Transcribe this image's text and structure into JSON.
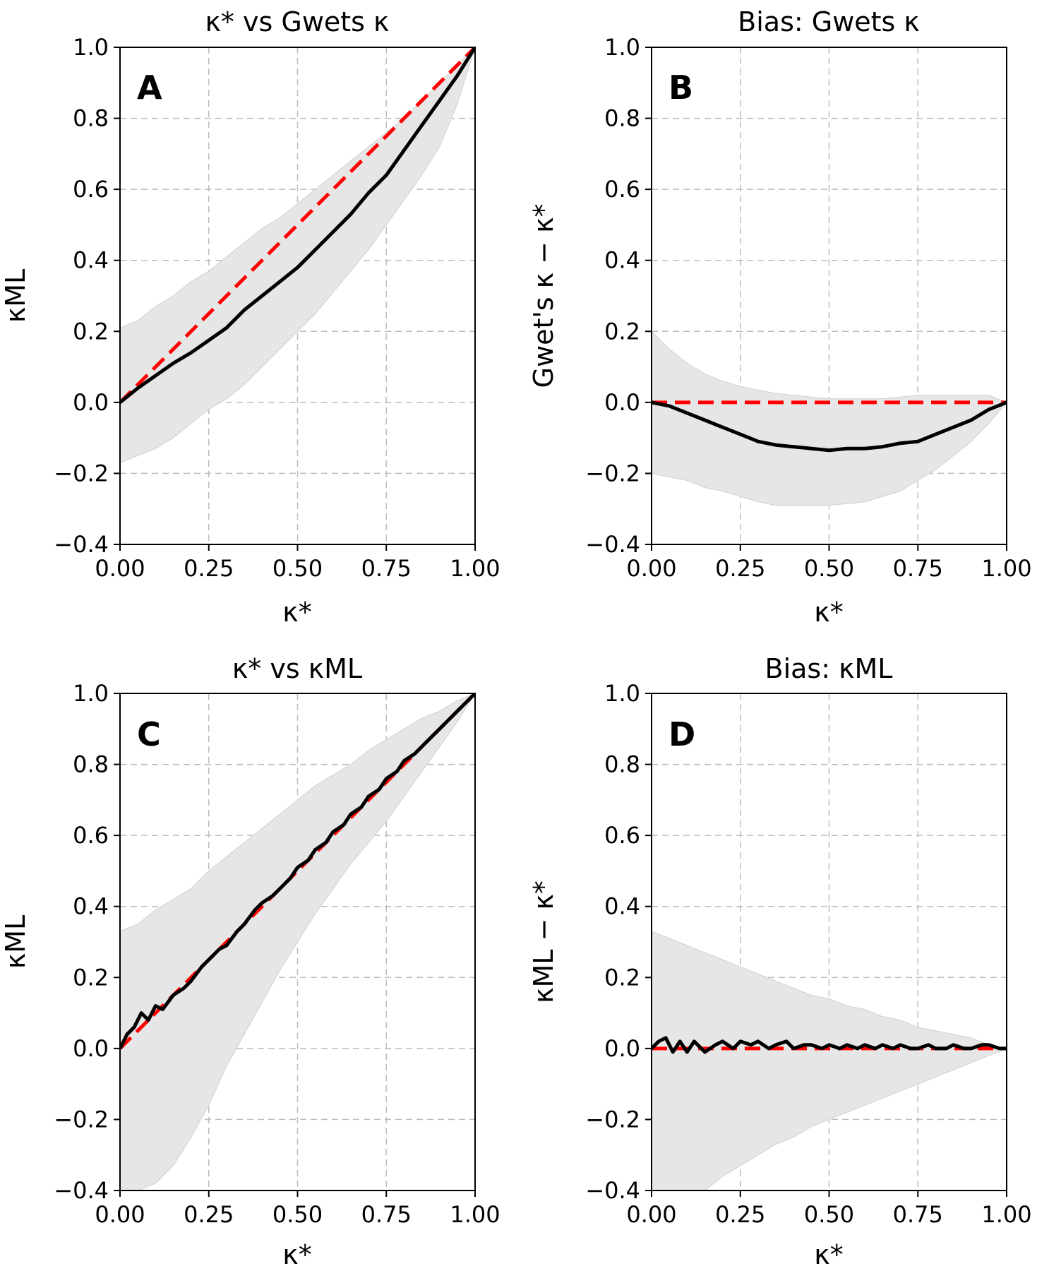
{
  "chart_data": [
    {
      "type": "line",
      "panel_label": "A",
      "title": "κ* vs Gwets κ",
      "xlabel": "κ*",
      "ylabel": "κML",
      "xlim": [
        0,
        1
      ],
      "ylim": [
        -0.4,
        1.0
      ],
      "xticks": [
        "0.00",
        "0.25",
        "0.50",
        "0.75",
        "1.00"
      ],
      "yticks": [
        "−0.4",
        "−0.2",
        "0.0",
        "0.2",
        "0.4",
        "0.6",
        "0.8",
        "1.0"
      ],
      "grid": true,
      "series": [
        {
          "name": "mean",
          "color": "#000000",
          "x": [
            0,
            0.05,
            0.1,
            0.15,
            0.2,
            0.25,
            0.3,
            0.35,
            0.4,
            0.45,
            0.5,
            0.55,
            0.6,
            0.65,
            0.7,
            0.75,
            0.8,
            0.85,
            0.9,
            0.95,
            1.0
          ],
          "y": [
            0.0,
            0.04,
            0.075,
            0.11,
            0.14,
            0.175,
            0.21,
            0.26,
            0.3,
            0.34,
            0.38,
            0.43,
            0.48,
            0.53,
            0.59,
            0.64,
            0.71,
            0.78,
            0.85,
            0.92,
            1.0
          ]
        },
        {
          "name": "identity",
          "color": "#ff0000",
          "style": "dashed",
          "x": [
            0,
            1
          ],
          "y": [
            0,
            1
          ]
        }
      ],
      "band": {
        "color": "#e6e6e6",
        "x": [
          0,
          0.05,
          0.1,
          0.15,
          0.2,
          0.25,
          0.3,
          0.35,
          0.4,
          0.45,
          0.5,
          0.55,
          0.6,
          0.65,
          0.7,
          0.75,
          0.8,
          0.85,
          0.9,
          0.95,
          1.0
        ],
        "upper": [
          0.21,
          0.23,
          0.27,
          0.3,
          0.34,
          0.37,
          0.41,
          0.45,
          0.49,
          0.52,
          0.56,
          0.6,
          0.64,
          0.68,
          0.72,
          0.76,
          0.8,
          0.85,
          0.9,
          0.95,
          1.0
        ],
        "lower": [
          -0.17,
          -0.15,
          -0.13,
          -0.1,
          -0.06,
          -0.02,
          0.01,
          0.05,
          0.1,
          0.15,
          0.2,
          0.25,
          0.31,
          0.37,
          0.43,
          0.5,
          0.57,
          0.64,
          0.72,
          0.84,
          1.0
        ]
      }
    },
    {
      "type": "line",
      "panel_label": "B",
      "title": "Bias: Gwets κ",
      "xlabel": "κ*",
      "ylabel": "Gwet's κ − κ*",
      "xlim": [
        0,
        1
      ],
      "ylim": [
        -0.4,
        1.0
      ],
      "xticks": [
        "0.00",
        "0.25",
        "0.50",
        "0.75",
        "1.00"
      ],
      "yticks": [
        "−0.4",
        "−0.2",
        "0.0",
        "0.2",
        "0.4",
        "0.6",
        "0.8",
        "1.0"
      ],
      "grid": true,
      "series": [
        {
          "name": "bias",
          "color": "#000000",
          "x": [
            0,
            0.05,
            0.1,
            0.15,
            0.2,
            0.25,
            0.3,
            0.35,
            0.4,
            0.45,
            0.5,
            0.55,
            0.6,
            0.65,
            0.7,
            0.75,
            0.8,
            0.85,
            0.9,
            0.95,
            1.0
          ],
          "y": [
            0.0,
            -0.01,
            -0.03,
            -0.05,
            -0.07,
            -0.09,
            -0.11,
            -0.12,
            -0.125,
            -0.13,
            -0.135,
            -0.13,
            -0.13,
            -0.125,
            -0.115,
            -0.11,
            -0.09,
            -0.07,
            -0.05,
            -0.02,
            0.0
          ]
        },
        {
          "name": "zero",
          "color": "#ff0000",
          "style": "dashed",
          "x": [
            0,
            1
          ],
          "y": [
            0,
            0
          ]
        }
      ],
      "band": {
        "color": "#e6e6e6",
        "x": [
          0,
          0.05,
          0.1,
          0.15,
          0.2,
          0.25,
          0.3,
          0.35,
          0.4,
          0.45,
          0.5,
          0.55,
          0.6,
          0.65,
          0.7,
          0.75,
          0.8,
          0.85,
          0.9,
          0.95,
          1.0
        ],
        "upper": [
          0.2,
          0.15,
          0.11,
          0.08,
          0.06,
          0.045,
          0.035,
          0.025,
          0.02,
          0.015,
          0.01,
          0.01,
          0.01,
          0.01,
          0.015,
          0.02,
          0.02,
          0.02,
          0.02,
          0.02,
          0.0
        ],
        "lower": [
          -0.2,
          -0.21,
          -0.22,
          -0.24,
          -0.25,
          -0.265,
          -0.28,
          -0.29,
          -0.29,
          -0.29,
          -0.29,
          -0.285,
          -0.28,
          -0.265,
          -0.25,
          -0.22,
          -0.19,
          -0.15,
          -0.11,
          -0.06,
          0.0
        ]
      }
    },
    {
      "type": "line",
      "panel_label": "C",
      "title": "κ* vs κML",
      "xlabel": "κ*",
      "ylabel": "κML",
      "xlim": [
        0,
        1
      ],
      "ylim": [
        -0.4,
        1.0
      ],
      "xticks": [
        "0.00",
        "0.25",
        "0.50",
        "0.75",
        "1.00"
      ],
      "yticks": [
        "−0.4",
        "−0.2",
        "0.0",
        "0.2",
        "0.4",
        "0.6",
        "0.8",
        "1.0"
      ],
      "grid": true,
      "series": [
        {
          "name": "mean",
          "color": "#000000",
          "x": [
            0,
            0.02,
            0.04,
            0.06,
            0.08,
            0.1,
            0.12,
            0.15,
            0.18,
            0.2,
            0.23,
            0.25,
            0.28,
            0.3,
            0.33,
            0.35,
            0.38,
            0.4,
            0.43,
            0.45,
            0.48,
            0.5,
            0.53,
            0.55,
            0.58,
            0.6,
            0.63,
            0.65,
            0.68,
            0.7,
            0.73,
            0.75,
            0.78,
            0.8,
            0.83,
            0.85,
            0.88,
            0.9,
            0.93,
            0.95,
            0.98,
            1.0
          ],
          "y": [
            0.0,
            0.04,
            0.06,
            0.1,
            0.08,
            0.12,
            0.11,
            0.15,
            0.17,
            0.19,
            0.23,
            0.25,
            0.28,
            0.29,
            0.33,
            0.35,
            0.39,
            0.41,
            0.43,
            0.45,
            0.48,
            0.51,
            0.53,
            0.56,
            0.58,
            0.61,
            0.63,
            0.66,
            0.68,
            0.71,
            0.73,
            0.76,
            0.78,
            0.81,
            0.83,
            0.85,
            0.88,
            0.9,
            0.93,
            0.95,
            0.98,
            1.0
          ]
        },
        {
          "name": "identity",
          "color": "#ff0000",
          "style": "dashed",
          "x": [
            0,
            1
          ],
          "y": [
            0,
            1
          ]
        }
      ],
      "band": {
        "color": "#e6e6e6",
        "x": [
          0,
          0.05,
          0.1,
          0.15,
          0.2,
          0.25,
          0.3,
          0.35,
          0.4,
          0.45,
          0.5,
          0.55,
          0.6,
          0.65,
          0.7,
          0.75,
          0.8,
          0.85,
          0.9,
          0.95,
          1.0
        ],
        "upper": [
          0.33,
          0.35,
          0.39,
          0.42,
          0.45,
          0.5,
          0.54,
          0.58,
          0.62,
          0.66,
          0.7,
          0.74,
          0.77,
          0.8,
          0.84,
          0.87,
          0.9,
          0.93,
          0.95,
          0.98,
          1.0
        ],
        "lower": [
          -0.4,
          -0.4,
          -0.38,
          -0.33,
          -0.25,
          -0.16,
          -0.05,
          0.04,
          0.13,
          0.22,
          0.3,
          0.38,
          0.45,
          0.52,
          0.58,
          0.64,
          0.71,
          0.78,
          0.85,
          0.92,
          1.0
        ]
      }
    },
    {
      "type": "line",
      "panel_label": "D",
      "title": "Bias: κML",
      "xlabel": "κ*",
      "ylabel": "κML − κ*",
      "xlim": [
        0,
        1
      ],
      "ylim": [
        -0.4,
        1.0
      ],
      "xticks": [
        "0.00",
        "0.25",
        "0.50",
        "0.75",
        "1.00"
      ],
      "yticks": [
        "−0.4",
        "−0.2",
        "0.0",
        "0.2",
        "0.4",
        "0.6",
        "0.8",
        "1.0"
      ],
      "grid": true,
      "series": [
        {
          "name": "bias",
          "color": "#000000",
          "x": [
            0,
            0.02,
            0.04,
            0.06,
            0.08,
            0.1,
            0.12,
            0.15,
            0.18,
            0.2,
            0.23,
            0.25,
            0.28,
            0.3,
            0.33,
            0.35,
            0.38,
            0.4,
            0.43,
            0.45,
            0.48,
            0.5,
            0.53,
            0.55,
            0.58,
            0.6,
            0.63,
            0.65,
            0.68,
            0.7,
            0.73,
            0.75,
            0.78,
            0.8,
            0.83,
            0.85,
            0.88,
            0.9,
            0.93,
            0.95,
            0.98,
            1.0
          ],
          "y": [
            0.0,
            0.02,
            0.03,
            -0.01,
            0.02,
            -0.01,
            0.02,
            -0.01,
            0.01,
            0.02,
            0.0,
            0.02,
            0.01,
            0.02,
            0.0,
            0.01,
            0.02,
            0.0,
            0.01,
            0.01,
            0.0,
            0.01,
            0.0,
            0.01,
            0.0,
            0.01,
            0.0,
            0.01,
            0.0,
            0.01,
            0.0,
            0.0,
            0.01,
            0.0,
            0.0,
            0.01,
            0.0,
            0.0,
            0.01,
            0.01,
            0.0,
            0.0
          ]
        },
        {
          "name": "zero",
          "color": "#ff0000",
          "style": "dashed",
          "x": [
            0,
            1
          ],
          "y": [
            0,
            0
          ]
        }
      ],
      "band": {
        "color": "#e6e6e6",
        "x": [
          0,
          0.05,
          0.1,
          0.15,
          0.2,
          0.25,
          0.3,
          0.35,
          0.4,
          0.45,
          0.5,
          0.55,
          0.6,
          0.65,
          0.7,
          0.75,
          0.8,
          0.85,
          0.9,
          0.95,
          1.0
        ],
        "upper": [
          0.33,
          0.31,
          0.29,
          0.27,
          0.25,
          0.23,
          0.21,
          0.19,
          0.17,
          0.15,
          0.14,
          0.12,
          0.11,
          0.09,
          0.08,
          0.06,
          0.05,
          0.04,
          0.03,
          0.01,
          0.0
        ],
        "lower": [
          -0.4,
          -0.4,
          -0.4,
          -0.4,
          -0.36,
          -0.33,
          -0.3,
          -0.27,
          -0.25,
          -0.22,
          -0.2,
          -0.18,
          -0.16,
          -0.14,
          -0.12,
          -0.1,
          -0.08,
          -0.06,
          -0.04,
          -0.02,
          0.0
        ]
      }
    }
  ]
}
